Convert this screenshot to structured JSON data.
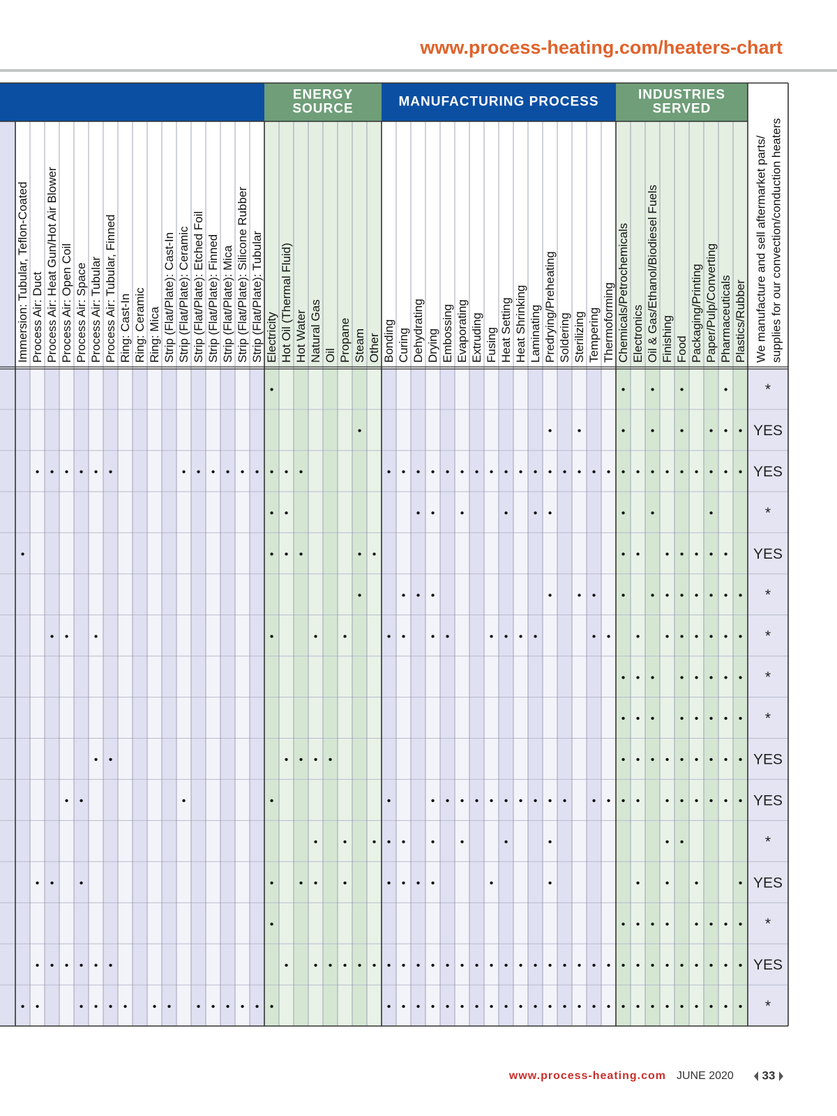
{
  "header": {
    "url": "www.process-heating.com/heaters-chart"
  },
  "table": {
    "groups": [
      {
        "columns": [
          "Immersion: Tubular, Teflon-Coated",
          "Process Air: Duct",
          "Process Air: Heat Gun/Hot Air Blower",
          "Process Air: Open Coil",
          "Process Air: Space",
          "Process Air: Tubular",
          "Process Air: Tubular, Finned",
          "Ring: Cast-In",
          "Ring: Ceramic",
          "Ring: Mica",
          "Strip (Flat/Plate): Cast-In",
          "Strip (Flat/Plate): Ceramic",
          "Strip (Flat/Plate): Etched Foil",
          "Strip (Flat/Plate): Finned",
          "Strip (Flat/Plate): Mica",
          "Strip (Flat/Plate): Silicone Rubber",
          "Strip (Flat/Plate): Tubular"
        ]
      },
      {
        "title": [
          "ENERGY",
          "SOURCE"
        ],
        "columns": [
          "Electricity",
          "Hot Oil (Thermal Fluid)",
          "Hot Water",
          "Natural Gas",
          "Oil",
          "Propane",
          "Steam",
          "Other"
        ]
      },
      {
        "title": [
          "MANUFACTURING PROCESS"
        ],
        "columns": [
          "Bonding",
          "Curing",
          "Dehydrating",
          "Drying",
          "Embossing",
          "Evaporating",
          "Extruding",
          "Fusing",
          "Heat Setting",
          "Heat Shrinking",
          "Laminating",
          "Predrying/Preheating",
          "Soldering",
          "Sterilizing",
          "Tempering",
          "Thermoforming"
        ]
      },
      {
        "title": [
          "INDUSTRIES",
          "SERVED"
        ],
        "columns": [
          "Chemicals/Petrochemicals",
          "Electronics",
          "Oil & Gas/Ethanol/Biodiesel Fuels",
          "Finishing",
          "Food",
          "Packaging/Printing",
          "Paper/Pulp/Converting",
          "Pharmaceuticals",
          "Plastics/Rubber"
        ]
      }
    ],
    "last_column_header": [
      "We manufacture and sell aftermarket parts/",
      "supplies for our convection/conduction heaters"
    ],
    "rows": [
      {
        "cells": [
          [
            null,
            null,
            null,
            null,
            null,
            null,
            null,
            null,
            null,
            null,
            null,
            null,
            null,
            null,
            null,
            null,
            null
          ],
          [
            "•",
            null,
            null,
            null,
            null,
            null,
            null,
            null
          ],
          [
            null,
            null,
            null,
            null,
            null,
            null,
            null,
            null,
            null,
            null,
            null,
            null,
            null,
            null,
            null,
            null
          ],
          [
            "•",
            null,
            "•",
            null,
            "•",
            null,
            null,
            "•",
            null
          ]
        ],
        "answer": "*"
      },
      {
        "cells": [
          [
            null,
            null,
            null,
            null,
            null,
            null,
            null,
            null,
            null,
            null,
            null,
            null,
            null,
            null,
            null,
            null,
            null
          ],
          [
            null,
            null,
            null,
            null,
            null,
            null,
            "•",
            null
          ],
          [
            null,
            null,
            null,
            null,
            null,
            null,
            null,
            null,
            null,
            null,
            null,
            "•",
            null,
            "•",
            null,
            null
          ],
          [
            "•",
            null,
            "•",
            null,
            "•",
            null,
            "•",
            "•",
            "•"
          ]
        ],
        "answer": "YES"
      },
      {
        "cells": [
          [
            null,
            "•",
            "•",
            "•",
            "•",
            "•",
            "•",
            null,
            null,
            null,
            null,
            "•",
            "•",
            "•",
            "•",
            "•",
            "•"
          ],
          [
            "•",
            "•",
            "•",
            null,
            null,
            null,
            null,
            null
          ],
          [
            "•",
            "•",
            "•",
            "•",
            "•",
            "•",
            "•",
            "•",
            "•",
            "•",
            "•",
            "•",
            "•",
            "•",
            "•",
            "•"
          ],
          [
            "•",
            "•",
            "•",
            "•",
            "•",
            "•",
            "•",
            "•",
            "•"
          ]
        ],
        "answer": "YES"
      },
      {
        "cells": [
          [
            null,
            null,
            null,
            null,
            null,
            null,
            null,
            null,
            null,
            null,
            null,
            null,
            null,
            null,
            null,
            null,
            null
          ],
          [
            "•",
            "•",
            null,
            null,
            null,
            null,
            null,
            null
          ],
          [
            null,
            null,
            "•",
            "•",
            null,
            "•",
            null,
            null,
            "•",
            null,
            "•",
            "•",
            null,
            null,
            null,
            null
          ],
          [
            "•",
            null,
            "•",
            null,
            null,
            null,
            "•",
            null,
            null
          ]
        ],
        "answer": "*"
      },
      {
        "cells": [
          [
            "•",
            null,
            null,
            null,
            null,
            null,
            null,
            null,
            null,
            null,
            null,
            null,
            null,
            null,
            null,
            null,
            null
          ],
          [
            "•",
            "•",
            "•",
            null,
            null,
            null,
            "•",
            "•"
          ],
          [
            null,
            null,
            null,
            null,
            null,
            null,
            null,
            null,
            null,
            null,
            null,
            null,
            null,
            null,
            null,
            null
          ],
          [
            "•",
            "•",
            null,
            "•",
            "•",
            "•",
            "•",
            "•",
            null
          ]
        ],
        "answer": "YES"
      },
      {
        "cells": [
          [
            null,
            null,
            null,
            null,
            null,
            null,
            null,
            null,
            null,
            null,
            null,
            null,
            null,
            null,
            null,
            null,
            null
          ],
          [
            null,
            null,
            null,
            null,
            null,
            null,
            "•",
            null
          ],
          [
            null,
            "•",
            "•",
            "•",
            null,
            null,
            null,
            null,
            null,
            null,
            null,
            "•",
            null,
            "•",
            "•",
            null
          ],
          [
            "•",
            null,
            "•",
            "•",
            "•",
            "•",
            "•",
            "•",
            "•"
          ]
        ],
        "answer": "*"
      },
      {
        "cells": [
          [
            null,
            null,
            "•",
            "•",
            null,
            "•",
            null,
            null,
            null,
            null,
            null,
            null,
            null,
            null,
            null,
            null,
            null
          ],
          [
            "•",
            null,
            null,
            "•",
            null,
            "•",
            null,
            null
          ],
          [
            "•",
            "•",
            null,
            "•",
            "•",
            null,
            null,
            "•",
            "•",
            "•",
            "•",
            null,
            null,
            null,
            "•",
            "•"
          ],
          [
            null,
            "•",
            null,
            "•",
            "•",
            "•",
            "•",
            "•",
            "•"
          ]
        ],
        "answer": "*"
      },
      {
        "cells": [
          [
            null,
            null,
            null,
            null,
            null,
            null,
            null,
            null,
            null,
            null,
            null,
            null,
            null,
            null,
            null,
            null,
            null
          ],
          [
            null,
            null,
            null,
            null,
            null,
            null,
            null,
            null
          ],
          [
            null,
            null,
            null,
            null,
            null,
            null,
            null,
            null,
            null,
            null,
            null,
            null,
            null,
            null,
            null,
            null
          ],
          [
            "•",
            "•",
            "•",
            null,
            "•",
            "•",
            "•",
            "•",
            "•"
          ]
        ],
        "answer": "*"
      },
      {
        "cells": [
          [
            null,
            null,
            null,
            null,
            null,
            null,
            null,
            null,
            null,
            null,
            null,
            null,
            null,
            null,
            null,
            null,
            null
          ],
          [
            null,
            null,
            null,
            null,
            null,
            null,
            null,
            null
          ],
          [
            null,
            null,
            null,
            null,
            null,
            null,
            null,
            null,
            null,
            null,
            null,
            null,
            null,
            null,
            null,
            null
          ],
          [
            "•",
            "•",
            "•",
            null,
            "•",
            "•",
            "•",
            "•",
            "•"
          ]
        ],
        "answer": "*"
      },
      {
        "cells": [
          [
            null,
            null,
            null,
            null,
            null,
            "•",
            "•",
            null,
            null,
            null,
            null,
            null,
            null,
            null,
            null,
            null,
            null
          ],
          [
            null,
            "•",
            "•",
            "•",
            "•",
            null,
            null,
            null
          ],
          [
            null,
            null,
            null,
            null,
            null,
            null,
            null,
            null,
            null,
            null,
            null,
            null,
            null,
            null,
            null,
            null
          ],
          [
            "•",
            "•",
            "•",
            "•",
            "•",
            "•",
            "•",
            "•",
            "•"
          ]
        ],
        "answer": "YES"
      },
      {
        "cells": [
          [
            null,
            null,
            null,
            "•",
            "•",
            null,
            null,
            null,
            null,
            null,
            null,
            "•",
            null,
            null,
            null,
            null,
            null
          ],
          [
            "•",
            null,
            null,
            null,
            null,
            null,
            null,
            null
          ],
          [
            "•",
            null,
            null,
            "•",
            "•",
            "•",
            "•",
            "•",
            "•",
            "•",
            "•",
            "•",
            "•",
            null,
            "•",
            "•"
          ],
          [
            "•",
            "•",
            null,
            "•",
            "•",
            "•",
            "•",
            "•",
            "•"
          ]
        ],
        "answer": "YES"
      },
      {
        "cells": [
          [
            null,
            null,
            null,
            null,
            null,
            null,
            null,
            null,
            null,
            null,
            null,
            null,
            null,
            null,
            null,
            null,
            null
          ],
          [
            null,
            null,
            null,
            "•",
            null,
            "•",
            null,
            "•"
          ],
          [
            "•",
            "•",
            null,
            "•",
            null,
            "•",
            null,
            null,
            "•",
            null,
            null,
            "•",
            null,
            null,
            null,
            null
          ],
          [
            null,
            null,
            null,
            "•",
            "•",
            null,
            null,
            null,
            null
          ]
        ],
        "answer": "*"
      },
      {
        "cells": [
          [
            null,
            "•",
            "•",
            null,
            "•",
            null,
            null,
            null,
            null,
            null,
            null,
            null,
            null,
            null,
            null,
            null,
            null
          ],
          [
            "•",
            null,
            "•",
            "•",
            null,
            "•",
            null,
            null
          ],
          [
            "•",
            "•",
            "•",
            "•",
            null,
            null,
            null,
            "•",
            null,
            null,
            null,
            "•",
            null,
            null,
            null,
            null
          ],
          [
            null,
            "•",
            null,
            "•",
            null,
            "•",
            null,
            null,
            "•"
          ]
        ],
        "answer": "YES"
      },
      {
        "cells": [
          [
            null,
            null,
            null,
            null,
            null,
            null,
            null,
            null,
            null,
            null,
            null,
            null,
            null,
            null,
            null,
            null,
            null
          ],
          [
            "•",
            null,
            null,
            null,
            null,
            null,
            null,
            null
          ],
          [
            null,
            null,
            null,
            null,
            null,
            null,
            null,
            null,
            null,
            null,
            null,
            null,
            null,
            null,
            null,
            null
          ],
          [
            "•",
            "•",
            "•",
            "•",
            null,
            "•",
            "•",
            "•",
            "•"
          ]
        ],
        "answer": "*"
      },
      {
        "cells": [
          [
            null,
            "•",
            "•",
            "•",
            "•",
            "•",
            "•",
            null,
            null,
            null,
            null,
            null,
            null,
            null,
            null,
            null,
            null
          ],
          [
            null,
            "•",
            null,
            "•",
            "•",
            "•",
            "•",
            "•"
          ],
          [
            "•",
            "•",
            "•",
            "•",
            "•",
            "•",
            "•",
            "•",
            "•",
            "•",
            "•",
            "•",
            "•",
            "•",
            "•",
            "•"
          ],
          [
            "•",
            "•",
            "•",
            "•",
            "•",
            "•",
            "•",
            "•",
            "•"
          ]
        ],
        "answer": "YES"
      },
      {
        "cells": [
          [
            "•",
            "•",
            null,
            null,
            "•",
            "•",
            "•",
            "•",
            null,
            "•",
            "•",
            null,
            "•",
            "•",
            "•",
            "•",
            "•"
          ],
          [
            "•",
            null,
            null,
            null,
            null,
            null,
            null,
            null
          ],
          [
            "•",
            "•",
            "•",
            "•",
            "•",
            "•",
            "•",
            "•",
            "•",
            "•",
            "•",
            "•",
            "•",
            "•",
            "•",
            "•"
          ],
          [
            "•",
            "•",
            "•",
            "•",
            "•",
            "•",
            "•",
            "•",
            "•"
          ]
        ],
        "answer": "*"
      }
    ]
  },
  "footer": {
    "site": "www.process-heating.com",
    "date": "JUNE 2020",
    "page": "33"
  }
}
